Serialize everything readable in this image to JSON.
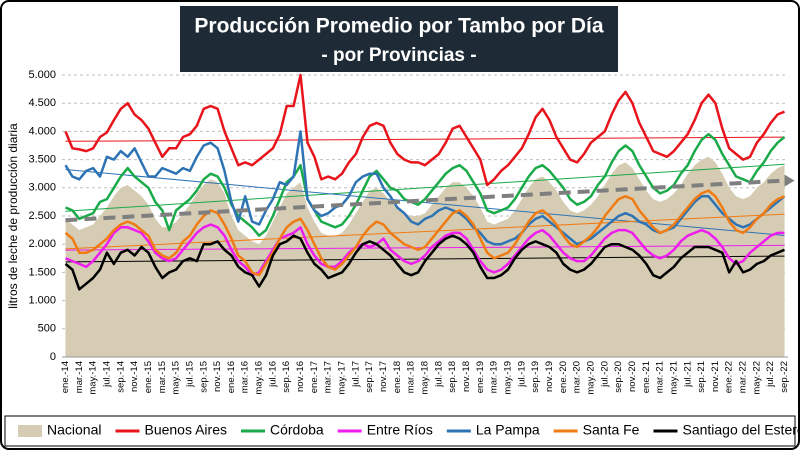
{
  "chart_data": {
    "type": "line",
    "title": "Producción Promedio por Tambo por Día",
    "subtitle": "- por Provincias -",
    "y_label": "litros de leche de producción diaria",
    "ylim": [
      0,
      5000
    ],
    "yticks": [
      0,
      500,
      {
        "value": 1000,
        "label": "1.000"
      },
      {
        "value": 1500,
        "label": "1.500"
      },
      {
        "value": 2000,
        "label": "2.000"
      },
      {
        "value": 2500,
        "label": "2.500"
      },
      {
        "value": 3000,
        "label": "3.000"
      },
      {
        "value": 3500,
        "label": "3.500"
      },
      {
        "value": 4000,
        "label": "4.000"
      },
      {
        "value": 4500,
        "label": "4.500"
      },
      {
        "value": 5000,
        "label": "5.000"
      }
    ],
    "grid": true,
    "legend": "bottom",
    "categories": [
      "ene.-14",
      null,
      "mar.-14",
      null,
      "may.-14",
      null,
      "jul.-14",
      null,
      "sep.-14",
      null,
      "nov.-14",
      null,
      "ene.-15",
      null,
      "mar.-15",
      null,
      "may.-15",
      null,
      "jul.-15",
      null,
      "sep.-15",
      null,
      "nov.-15",
      null,
      "ene.-16",
      null,
      "mar.-16",
      null,
      "may.-16",
      null,
      "jul.-16",
      null,
      "sep.-16",
      null,
      "nov.-16",
      null,
      "ene.-17",
      null,
      "mar.-17",
      null,
      "may.-17",
      null,
      "jul.-17",
      null,
      "sep.-17",
      null,
      "nov.-17",
      null,
      "ene.-18",
      null,
      "mar.-18",
      null,
      "may.-18",
      null,
      "jul.-18",
      null,
      "sep.-18",
      null,
      "nov.-18",
      null,
      "ene.-19",
      null,
      "mar.-19",
      null,
      "may.-19",
      null,
      "jul.-19",
      null,
      "sep.-19",
      null,
      "nov.-19",
      null,
      "ene.-20",
      null,
      "mar.-20",
      null,
      "may.-20",
      null,
      "jul.-20",
      null,
      "sep.-20",
      null,
      "nov.-20",
      null,
      "ene.-21",
      null,
      "mar.-21",
      null,
      "may.-21",
      null,
      "jul.-21",
      null,
      "sep.-21",
      null,
      "nov.-21",
      null,
      "ene.-22",
      null,
      "mar.-22",
      null,
      "may.-22",
      null,
      "jul.-22",
      null,
      "sep.-22"
    ],
    "series": [
      {
        "name": "Nacional",
        "color": "#d6ccb4",
        "style": "area",
        "trend_color": "#7f7f7f",
        "values": [
          2450,
          2350,
          2250,
          2300,
          2350,
          2500,
          2650,
          2850,
          3000,
          3050,
          2950,
          2850,
          2700,
          2450,
          2300,
          2300,
          2400,
          2550,
          2700,
          2900,
          3050,
          3150,
          3100,
          2900,
          2500,
          2250,
          2150,
          2050,
          2000,
          2150,
          2400,
          2650,
          2900,
          3000,
          3100,
          2650,
          2400,
          2200,
          2150,
          2150,
          2200,
          2350,
          2550,
          2750,
          2950,
          3000,
          2900,
          2750,
          2650,
          2550,
          2500,
          2500,
          2550,
          2700,
          2850,
          3000,
          3100,
          3100,
          3000,
          2850,
          2650,
          2400,
          2350,
          2400,
          2450,
          2600,
          2800,
          3000,
          3150,
          3200,
          3100,
          2950,
          2750,
          2600,
          2550,
          2600,
          2700,
          2850,
          3050,
          3250,
          3400,
          3450,
          3350,
          3150,
          2950,
          2800,
          2750,
          2800,
          2900,
          3050,
          3250,
          3400,
          3500,
          3550,
          3450,
          3250,
          3000,
          2850,
          2800,
          2850,
          3000,
          3100,
          3250,
          3350,
          3400
        ]
      },
      {
        "name": "Buenos Aires",
        "color": "#e8141b",
        "values": [
          4000,
          3700,
          3680,
          3650,
          3700,
          3900,
          3980,
          4200,
          4400,
          4500,
          4300,
          4200,
          4050,
          3800,
          3550,
          3700,
          3700,
          3900,
          3950,
          4100,
          4400,
          4450,
          4400,
          4000,
          3700,
          3400,
          3450,
          3400,
          3500,
          3600,
          3700,
          3950,
          4450,
          4450,
          5000,
          3800,
          3550,
          3150,
          3200,
          3150,
          3250,
          3450,
          3600,
          3900,
          4100,
          4150,
          4100,
          3800,
          3600,
          3500,
          3450,
          3450,
          3400,
          3500,
          3600,
          3800,
          4050,
          4100,
          3900,
          3700,
          3500,
          3050,
          3150,
          3300,
          3400,
          3550,
          3700,
          3950,
          4250,
          4400,
          4200,
          3900,
          3700,
          3500,
          3450,
          3600,
          3800,
          3900,
          4000,
          4300,
          4550,
          4700,
          4500,
          4150,
          3900,
          3650,
          3600,
          3550,
          3650,
          3800,
          3950,
          4200,
          4500,
          4650,
          4500,
          4050,
          3700,
          3600,
          3500,
          3550,
          3800,
          3950,
          4150,
          4300,
          4350
        ]
      },
      {
        "name": "Córdoba",
        "color": "#1aaa4a",
        "values": [
          2650,
          2600,
          2450,
          2500,
          2550,
          2750,
          2800,
          3000,
          3200,
          3350,
          3200,
          3100,
          3000,
          2750,
          2600,
          2250,
          2600,
          2700,
          2800,
          2950,
          3150,
          3250,
          3200,
          3000,
          2700,
          2500,
          2400,
          2300,
          2150,
          2250,
          2500,
          2800,
          3100,
          3200,
          3400,
          2800,
          2600,
          2400,
          2350,
          2300,
          2350,
          2500,
          2700,
          2950,
          3200,
          3300,
          3150,
          3000,
          2950,
          2800,
          2750,
          2700,
          2800,
          2950,
          3100,
          3250,
          3350,
          3400,
          3300,
          3100,
          2900,
          2600,
          2550,
          2600,
          2650,
          2800,
          3000,
          3200,
          3350,
          3400,
          3300,
          3150,
          3000,
          2800,
          2700,
          2750,
          2850,
          3050,
          3200,
          3450,
          3650,
          3750,
          3650,
          3400,
          3200,
          3000,
          2900,
          2950,
          3050,
          3250,
          3400,
          3650,
          3850,
          3950,
          3850,
          3600,
          3400,
          3200,
          3150,
          3100,
          3300,
          3450,
          3650,
          3800,
          3900
        ]
      },
      {
        "name": "Entre Ríos",
        "color": "#ee1cee",
        "values": [
          1750,
          1700,
          1650,
          1600,
          1700,
          1850,
          2000,
          2200,
          2300,
          2300,
          2250,
          2200,
          2050,
          1850,
          1750,
          1700,
          1750,
          1900,
          2050,
          2200,
          2300,
          2350,
          2300,
          2150,
          1900,
          1700,
          1600,
          1450,
          1500,
          1700,
          1900,
          2100,
          2150,
          2200,
          2300,
          2000,
          1800,
          1650,
          1600,
          1600,
          1700,
          1850,
          1950,
          2000,
          1950,
          2000,
          2100,
          1900,
          1800,
          1700,
          1650,
          1700,
          1800,
          1950,
          2050,
          2150,
          2200,
          2200,
          2100,
          1900,
          1700,
          1550,
          1500,
          1550,
          1650,
          1800,
          1950,
          2100,
          2200,
          2250,
          2150,
          2000,
          1850,
          1750,
          1700,
          1700,
          1800,
          1950,
          2100,
          2200,
          2250,
          2250,
          2200,
          2050,
          1900,
          1800,
          1750,
          1800,
          1900,
          2050,
          2150,
          2200,
          2250,
          2200,
          2100,
          1950,
          1750,
          1650,
          1700,
          1850,
          1950,
          2050,
          2150,
          2200,
          2200
        ]
      },
      {
        "name": "La Pampa",
        "color": "#2e74b5",
        "values": [
          3400,
          3200,
          3150,
          3300,
          3350,
          3200,
          3550,
          3500,
          3650,
          3550,
          3700,
          3450,
          3200,
          3200,
          3350,
          3300,
          3250,
          3350,
          3300,
          3550,
          3750,
          3800,
          3700,
          3300,
          2750,
          2400,
          2850,
          2400,
          2350,
          2600,
          2800,
          3100,
          3050,
          3200,
          4000,
          2800,
          2600,
          2500,
          2550,
          2650,
          2700,
          2850,
          3100,
          3200,
          3250,
          3250,
          3000,
          2850,
          2650,
          2550,
          2400,
          2350,
          2450,
          2500,
          2600,
          2650,
          2600,
          2550,
          2450,
          2300,
          2200,
          2050,
          2000,
          2000,
          2050,
          2100,
          2200,
          2350,
          2450,
          2500,
          2400,
          2300,
          2200,
          2100,
          2000,
          2050,
          2100,
          2200,
          2300,
          2400,
          2500,
          2550,
          2500,
          2400,
          2350,
          2250,
          2200,
          2250,
          2300,
          2450,
          2600,
          2750,
          2850,
          2850,
          2700,
          2550,
          2450,
          2350,
          2300,
          2350,
          2450,
          2550,
          2650,
          2750,
          2850
        ]
      },
      {
        "name": "Santa Fe",
        "color": "#f07b12",
        "values": [
          2200,
          2100,
          1850,
          1850,
          1900,
          2000,
          2100,
          2250,
          2350,
          2400,
          2350,
          2250,
          2150,
          1900,
          1800,
          1750,
          1850,
          2050,
          2150,
          2350,
          2500,
          2600,
          2550,
          2350,
          2100,
          1800,
          1700,
          1500,
          1450,
          1650,
          1850,
          2100,
          2300,
          2400,
          2450,
          2250,
          2000,
          1750,
          1600,
          1550,
          1650,
          1800,
          1950,
          2150,
          2300,
          2400,
          2350,
          2200,
          2100,
          2000,
          1950,
          1900,
          1950,
          2100,
          2250,
          2400,
          2550,
          2600,
          2500,
          2350,
          2100,
          1850,
          1750,
          1800,
          1850,
          2000,
          2200,
          2400,
          2550,
          2600,
          2500,
          2350,
          2150,
          2000,
          1950,
          2050,
          2150,
          2300,
          2500,
          2650,
          2800,
          2850,
          2800,
          2600,
          2450,
          2300,
          2200,
          2250,
          2350,
          2500,
          2650,
          2800,
          2900,
          2950,
          2850,
          2650,
          2400,
          2250,
          2200,
          2300,
          2450,
          2550,
          2700,
          2800,
          2850
        ]
      },
      {
        "name": "Santiago del Estero",
        "color": "#000000",
        "values": [
          1650,
          1550,
          1200,
          1300,
          1400,
          1550,
          1850,
          1650,
          1850,
          1900,
          1800,
          1950,
          1850,
          1600,
          1400,
          1500,
          1550,
          1700,
          1750,
          1700,
          2000,
          2000,
          2050,
          1900,
          1800,
          1600,
          1500,
          1450,
          1250,
          1450,
          1800,
          2000,
          2050,
          2150,
          2100,
          1850,
          1650,
          1550,
          1400,
          1450,
          1500,
          1650,
          1850,
          2000,
          2050,
          2000,
          1900,
          1800,
          1650,
          1500,
          1450,
          1500,
          1700,
          1850,
          2000,
          2100,
          2150,
          2100,
          2000,
          1850,
          1600,
          1400,
          1400,
          1450,
          1550,
          1750,
          1900,
          2000,
          2050,
          2000,
          1950,
          1850,
          1650,
          1550,
          1500,
          1550,
          1650,
          1800,
          1950,
          2000,
          2000,
          1950,
          1900,
          1800,
          1650,
          1450,
          1400,
          1500,
          1600,
          1750,
          1850,
          1950,
          1950,
          1950,
          1900,
          1850,
          1500,
          1700,
          1500,
          1550,
          1650,
          1700,
          1800,
          1850,
          1900
        ]
      }
    ]
  }
}
